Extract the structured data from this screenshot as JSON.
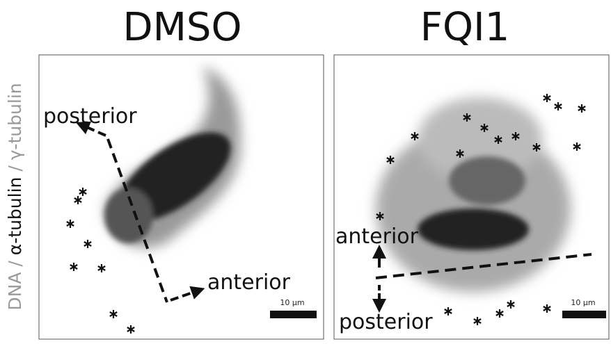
{
  "side_label_parts": [
    "DNA / ",
    "α-tubulin",
    " / γ-tubulin"
  ],
  "panels": [
    {
      "title": "DMSO",
      "labels": [
        "posterior",
        "anterior"
      ],
      "scale_bar": "10 µm"
    },
    {
      "title": "FQI1",
      "labels": [
        "anterior",
        "posterior"
      ],
      "scale_bar": "10 µm"
    }
  ]
}
